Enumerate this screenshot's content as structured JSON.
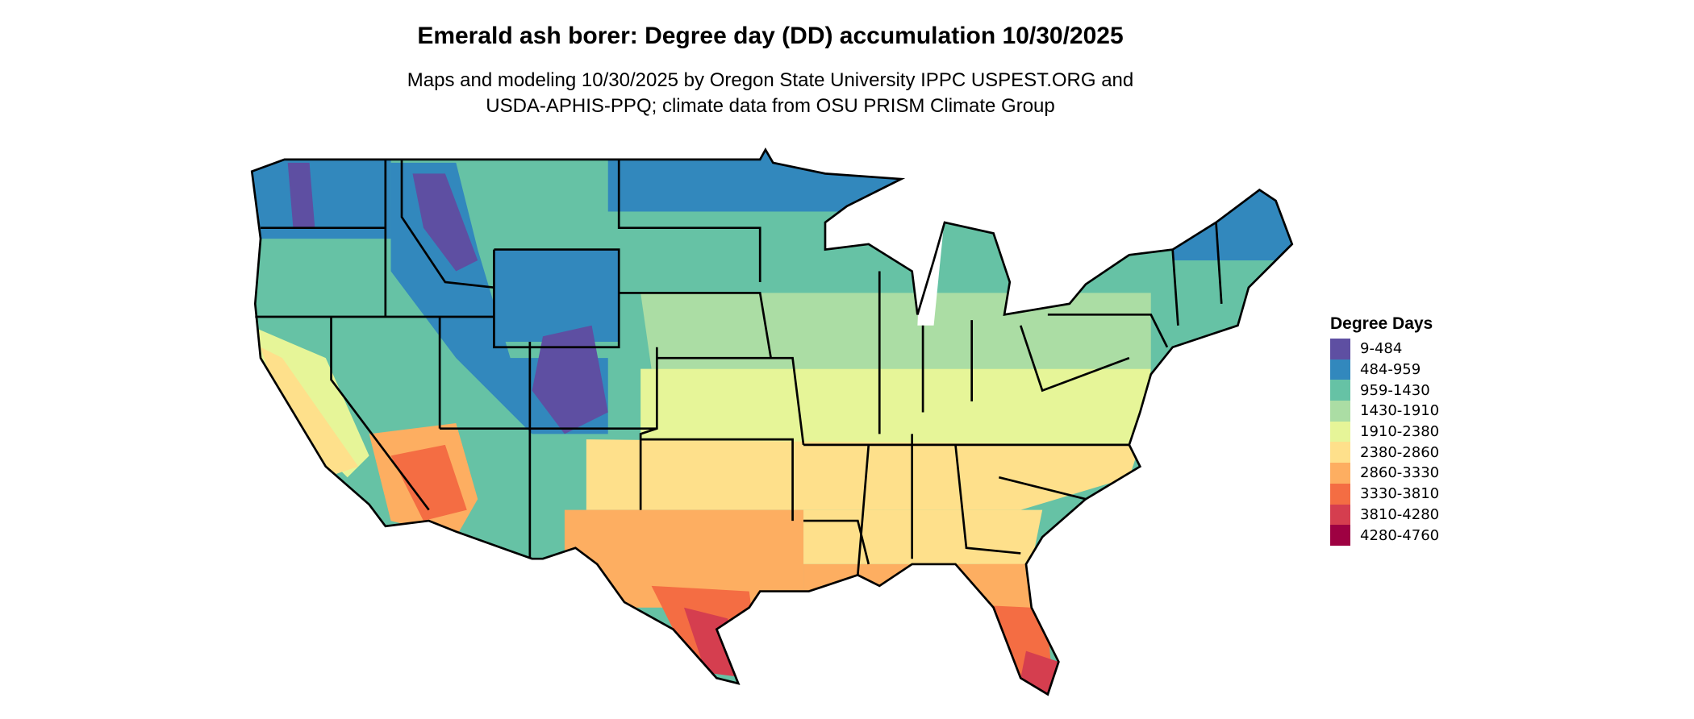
{
  "title": "Emerald ash borer: Degree day (DD) accumulation 10/30/2025",
  "subtitle_line1": "Maps and modeling 10/30/2025 by Oregon State University IPPC USPEST.ORG and",
  "subtitle_line2": "USDA-APHIS-PPQ; climate data from OSU PRISM Climate Group",
  "legend": {
    "title": "Degree Days",
    "items": [
      {
        "label": "9-484",
        "color": "#5e4fa2"
      },
      {
        "label": "484-959",
        "color": "#3288bd"
      },
      {
        "label": "959-1430",
        "color": "#66c2a5"
      },
      {
        "label": "1430-1910",
        "color": "#abdda4"
      },
      {
        "label": "1910-2380",
        "color": "#e6f598"
      },
      {
        "label": "2380-2860",
        "color": "#fee08b"
      },
      {
        "label": "2860-3330",
        "color": "#fdae61"
      },
      {
        "label": "3330-3810",
        "color": "#f46d43"
      },
      {
        "label": "3810-4280",
        "color": "#d53e4f"
      },
      {
        "label": "4280-4760",
        "color": "#9e0142"
      }
    ]
  }
}
